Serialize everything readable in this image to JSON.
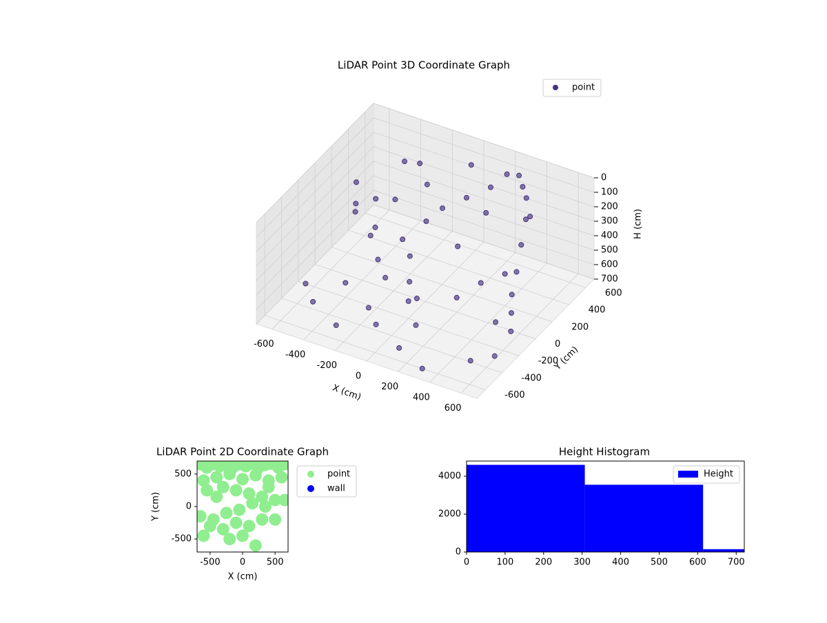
{
  "chart_data": [
    {
      "type": "scatter3d",
      "title": "LiDAR Point 3D Coordinate Graph",
      "xlabel": "X (cm)",
      "ylabel": "Y (cm)",
      "zlabel": "H (cm)",
      "xlim": [
        -700,
        700
      ],
      "ylim": [
        -700,
        700
      ],
      "zlim": [
        0,
        700
      ],
      "z_inverted": true,
      "xticks": [
        -600,
        -400,
        -200,
        0,
        200,
        400,
        600
      ],
      "yticks": [
        -600,
        -400,
        -200,
        0,
        200,
        400,
        600
      ],
      "zticks": [
        0,
        100,
        200,
        300,
        400,
        500,
        600,
        700
      ],
      "legend": "upper right",
      "series": [
        {
          "name": "point",
          "color": "#46327e",
          "x": [
            -650,
            -600,
            -550,
            -500,
            -450,
            -400,
            -350,
            -300,
            -250,
            -200,
            -150,
            -100,
            -50,
            0,
            50,
            100,
            150,
            200,
            250,
            300,
            350,
            400,
            450,
            500,
            550,
            600,
            650,
            -600,
            -500,
            -400,
            -300,
            -200,
            -100,
            0,
            100,
            200,
            300,
            400,
            500,
            600,
            -300,
            -200,
            0,
            200,
            400,
            -100,
            100,
            300,
            -450,
            500
          ],
          "y": [
            400,
            300,
            200,
            350,
            250,
            100,
            300,
            0,
            200,
            -100,
            100,
            0,
            300,
            -200,
            400,
            200,
            500,
            600,
            650,
            600,
            550,
            450,
            300,
            150,
            0,
            -100,
            -200,
            -300,
            -400,
            -200,
            -500,
            -300,
            -400,
            -100,
            -300,
            0,
            100,
            200,
            -100,
            -300,
            500,
            400,
            550,
            350,
            500,
            200,
            -500,
            -600,
            600,
            -400
          ],
          "z": [
            350,
            420,
            400,
            380,
            500,
            450,
            300,
            520,
            480,
            550,
            500,
            600,
            250,
            580,
            200,
            400,
            150,
            100,
            120,
            150,
            180,
            250,
            320,
            400,
            450,
            500,
            550,
            620,
            650,
            600,
            680,
            640,
            660,
            620,
            650,
            600,
            520,
            480,
            600,
            680,
            150,
            200,
            80,
            220,
            260,
            300,
            690,
            700,
            250,
            690
          ]
        }
      ]
    },
    {
      "type": "scatter",
      "title": "LiDAR Point 2D Coordinate Graph",
      "xlabel": "X (cm)",
      "ylabel": "Y (cm)",
      "xlim": [
        -700,
        700
      ],
      "ylim": [
        -700,
        700
      ],
      "xticks": [
        -500,
        0,
        500
      ],
      "yticks": [
        -500,
        0,
        500
      ],
      "legend": "outside right",
      "series": [
        {
          "name": "point",
          "color": "#90ee90",
          "x": [
            -650,
            -550,
            -450,
            -350,
            -250,
            -150,
            -50,
            50,
            150,
            250,
            350,
            450,
            550,
            650,
            -600,
            -400,
            -200,
            0,
            200,
            400,
            600,
            -550,
            -300,
            -100,
            100,
            300,
            500,
            -650,
            -450,
            -250,
            -50,
            150,
            350,
            -500,
            -300,
            -100,
            100,
            300,
            -600,
            -200,
            0,
            200,
            500,
            650,
            -400,
            400
          ],
          "y": [
            650,
            600,
            650,
            620,
            640,
            600,
            650,
            620,
            660,
            600,
            640,
            660,
            600,
            650,
            400,
            450,
            500,
            420,
            480,
            400,
            450,
            250,
            300,
            250,
            200,
            150,
            100,
            -150,
            -200,
            -100,
            -50,
            50,
            0,
            -300,
            -350,
            -250,
            -300,
            -200,
            -450,
            -500,
            -450,
            -600,
            -200,
            100,
            150,
            300
          ]
        },
        {
          "name": "wall",
          "color": "#0000ff",
          "x": [],
          "y": []
        }
      ]
    },
    {
      "type": "histogram",
      "title": "Height Histogram",
      "xlim": [
        0,
        721
      ],
      "ylim": [
        0,
        4800
      ],
      "xticks": [
        0,
        100,
        200,
        300,
        400,
        500,
        600,
        700
      ],
      "yticks": [
        0,
        2000,
        4000
      ],
      "legend": "upper right",
      "series": [
        {
          "name": "Height",
          "color": "#0000ff",
          "bins": [
            0,
            307,
            614,
            921
          ],
          "values": [
            4600,
            3550,
            150
          ]
        }
      ]
    }
  ]
}
